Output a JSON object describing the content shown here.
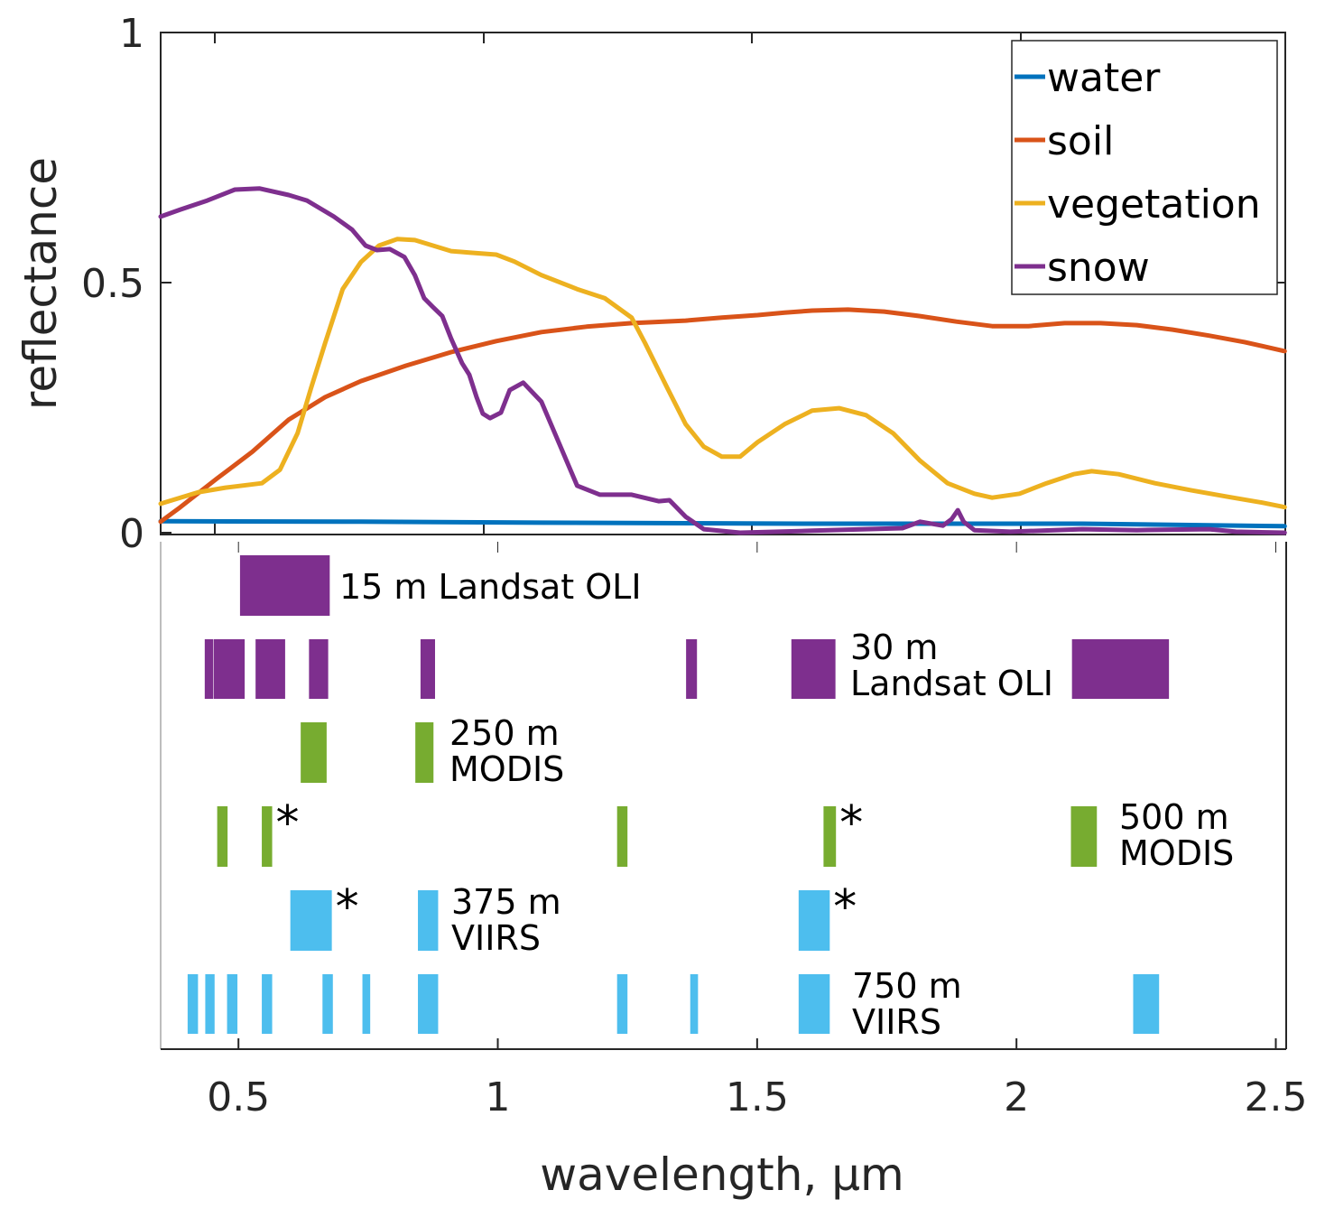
{
  "chart_data": [
    {
      "type": "line",
      "panel": "reflectance-spectra",
      "title": "",
      "xlabel": "",
      "ylabel": "reflectance",
      "xlim": [
        0.35,
        2.52
      ],
      "ylim": [
        0,
        1
      ],
      "yticks": [
        0,
        0.5,
        1
      ],
      "ytick_labels": [
        "0",
        "0.5",
        "1"
      ],
      "grid": false,
      "legend_position": "top-right",
      "series": [
        {
          "name": "water",
          "color": "#0072BD",
          "x": [
            0.35,
            0.736,
            1.084,
            1.606,
            2.127,
            2.517
          ],
          "y": [
            0.023,
            0.022,
            0.02,
            0.018,
            0.018,
            0.013
          ]
        },
        {
          "name": "soil",
          "color": "#D95319",
          "x": [
            0.35,
            0.388,
            0.458,
            0.527,
            0.597,
            0.667,
            0.736,
            0.823,
            0.91,
            0.997,
            1.084,
            1.171,
            1.258,
            1.362,
            1.432,
            1.501,
            1.553,
            1.606,
            1.675,
            1.745,
            1.814,
            1.884,
            1.953,
            2.023,
            2.093,
            2.162,
            2.232,
            2.301,
            2.371,
            2.44,
            2.517
          ],
          "y": [
            0.022,
            0.051,
            0.108,
            0.162,
            0.226,
            0.271,
            0.303,
            0.334,
            0.361,
            0.383,
            0.401,
            0.412,
            0.419,
            0.424,
            0.43,
            0.435,
            0.44,
            0.444,
            0.446,
            0.442,
            0.433,
            0.422,
            0.413,
            0.413,
            0.419,
            0.419,
            0.415,
            0.406,
            0.394,
            0.381,
            0.363
          ]
        },
        {
          "name": "vegetation",
          "color": "#EDB120",
          "x": [
            0.35,
            0.423,
            0.475,
            0.545,
            0.58,
            0.614,
            0.64,
            0.667,
            0.701,
            0.736,
            0.771,
            0.806,
            0.84,
            0.875,
            0.91,
            0.945,
            0.997,
            1.032,
            1.084,
            1.153,
            1.206,
            1.258,
            1.284,
            1.327,
            1.362,
            1.397,
            1.432,
            1.467,
            1.501,
            1.553,
            1.606,
            1.658,
            1.71,
            1.762,
            1.814,
            1.867,
            1.919,
            1.953,
            2.006,
            2.058,
            2.11,
            2.145,
            2.197,
            2.267,
            2.336,
            2.406,
            2.475,
            2.517
          ],
          "y": [
            0.058,
            0.081,
            0.09,
            0.099,
            0.126,
            0.199,
            0.289,
            0.379,
            0.487,
            0.541,
            0.574,
            0.587,
            0.585,
            0.574,
            0.563,
            0.56,
            0.556,
            0.542,
            0.515,
            0.487,
            0.469,
            0.43,
            0.379,
            0.289,
            0.217,
            0.172,
            0.152,
            0.152,
            0.181,
            0.217,
            0.244,
            0.249,
            0.235,
            0.199,
            0.144,
            0.099,
            0.078,
            0.07,
            0.078,
            0.099,
            0.117,
            0.123,
            0.117,
            0.099,
            0.085,
            0.072,
            0.06,
            0.051
          ]
        },
        {
          "name": "snow",
          "color": "#7E2F8E",
          "x": [
            0.35,
            0.388,
            0.44,
            0.493,
            0.541,
            0.597,
            0.632,
            0.684,
            0.719,
            0.745,
            0.767,
            0.792,
            0.82,
            0.84,
            0.858,
            0.875,
            0.893,
            0.91,
            0.931,
            0.945,
            0.959,
            0.971,
            0.985,
            1.006,
            1.023,
            1.049,
            1.084,
            1.11,
            1.153,
            1.197,
            1.258,
            1.31,
            1.331,
            1.362,
            1.397,
            1.467,
            1.606,
            1.78,
            1.814,
            1.858,
            1.875,
            1.887,
            1.898,
            1.919,
            1.988,
            2.127,
            2.232,
            2.371,
            2.423,
            2.517
          ],
          "y": [
            0.632,
            0.646,
            0.664,
            0.686,
            0.688,
            0.675,
            0.664,
            0.632,
            0.606,
            0.574,
            0.565,
            0.567,
            0.551,
            0.515,
            0.469,
            0.451,
            0.433,
            0.388,
            0.339,
            0.316,
            0.271,
            0.238,
            0.229,
            0.24,
            0.285,
            0.3,
            0.262,
            0.199,
            0.094,
            0.076,
            0.076,
            0.063,
            0.065,
            0.032,
            0.007,
            0.0,
            0.004,
            0.009,
            0.022,
            0.014,
            0.027,
            0.045,
            0.022,
            0.005,
            0.002,
            0.007,
            0.005,
            0.007,
            0.002,
            0.0
          ]
        }
      ]
    },
    {
      "type": "bar",
      "panel": "sensor-bands",
      "xlabel": "wavelength, μm",
      "xlim": [
        0.35,
        2.52
      ],
      "xticks": [
        0.5,
        1,
        1.5,
        2,
        2.5
      ],
      "xtick_labels": [
        "0.5",
        "1",
        "1.5",
        "2",
        "2.5"
      ],
      "grid": false,
      "rows": [
        {
          "name": "15 m Landsat OLI",
          "label_lines": [
            "15 m Landsat OLI"
          ],
          "color": "#7E2F8E",
          "bands": [
            [
              0.503,
              0.676
            ]
          ],
          "starred": []
        },
        {
          "name": "30 m Landsat OLI",
          "label_lines": [
            "30 m",
            "Landsat OLI"
          ],
          "color": "#7E2F8E",
          "bands": [
            [
              0.435,
              0.451
            ],
            [
              0.452,
              0.512
            ],
            [
              0.533,
              0.59
            ],
            [
              0.636,
              0.673
            ],
            [
              0.851,
              0.879
            ],
            [
              1.363,
              1.384
            ],
            [
              1.566,
              1.651
            ],
            [
              2.107,
              2.294
            ]
          ],
          "starred": []
        },
        {
          "name": "250 m MODIS",
          "label_lines": [
            "250 m",
            "MODIS"
          ],
          "color": "#77AC30",
          "bands": [
            [
              0.62,
              0.67
            ],
            [
              0.841,
              0.876
            ]
          ],
          "starred": []
        },
        {
          "name": "500 m MODIS",
          "label_lines": [
            "500 m",
            "MODIS"
          ],
          "color": "#77AC30",
          "bands": [
            [
              0.459,
              0.479
            ],
            [
              0.545,
              0.565
            ],
            [
              1.23,
              1.25
            ],
            [
              1.628,
              1.652
            ],
            [
              2.105,
              2.155
            ]
          ],
          "starred": [
            1,
            3
          ]
        },
        {
          "name": "375 m VIIRS",
          "label_lines": [
            "375 m",
            "VIIRS"
          ],
          "color": "#4DBEEE",
          "bands": [
            [
              0.6,
              0.68
            ],
            [
              0.846,
              0.885
            ],
            [
              1.58,
              1.64
            ]
          ],
          "starred": [
            0,
            2
          ]
        },
        {
          "name": "750 m VIIRS",
          "label_lines": [
            "750 m",
            "VIIRS"
          ],
          "color": "#4DBEEE",
          "bands": [
            [
              0.402,
              0.422
            ],
            [
              0.436,
              0.454
            ],
            [
              0.478,
              0.498
            ],
            [
              0.545,
              0.565
            ],
            [
              0.662,
              0.682
            ],
            [
              0.739,
              0.754
            ],
            [
              0.846,
              0.885
            ],
            [
              1.23,
              1.25
            ],
            [
              1.371,
              1.386
            ],
            [
              1.58,
              1.64
            ],
            [
              2.225,
              2.275
            ]
          ],
          "starred": []
        }
      ]
    }
  ],
  "star_symbol": "*"
}
